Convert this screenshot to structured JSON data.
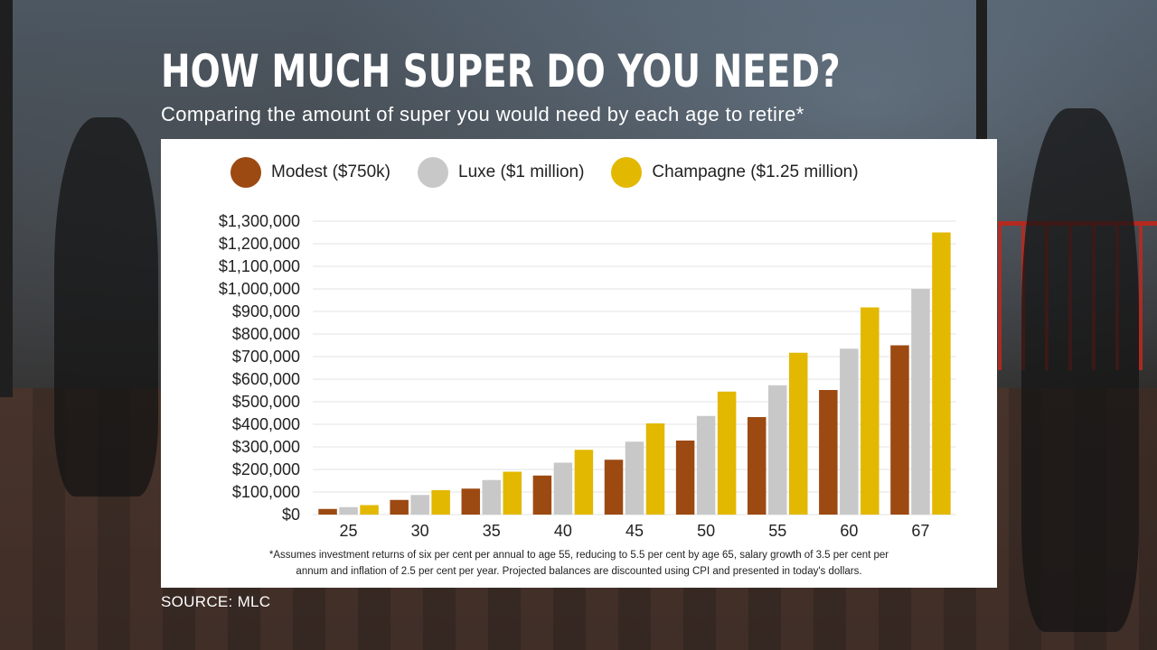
{
  "title": "HOW MUCH SUPER DO YOU NEED?",
  "subtitle": "Comparing the amount of super you would need by each age to retire*",
  "footnote_line1": "*Assumes investment returns of six per cent per annual to age 55, reducing to 5.5 per cent by age 65, salary growth of 3.5 per cent per",
  "footnote_line2": "annum and inflation of 2.5 per cent per year. Projected balances are discounted using CPI and presented in today's dollars.",
  "source": "SOURCE: MLC",
  "colors": {
    "modest": "#9c4a12",
    "luxe": "#c8c8c8",
    "champagne": "#e2b800",
    "grid": "#e3e3e3"
  },
  "chart_data": {
    "type": "bar",
    "title": "HOW MUCH SUPER DO YOU NEED?",
    "xlabel": "",
    "ylabel": "",
    "categories": [
      "25",
      "30",
      "35",
      "40",
      "45",
      "50",
      "55",
      "60",
      "67"
    ],
    "series": [
      {
        "name": "Modest ($750k)",
        "color": "#9c4a12",
        "values": [
          25000,
          65000,
          115000,
          173000,
          243000,
          328000,
          432000,
          552000,
          750000
        ]
      },
      {
        "name": "Luxe ($1 million)",
        "color": "#c8c8c8",
        "values": [
          33000,
          87000,
          153000,
          230000,
          323000,
          437000,
          573000,
          735000,
          1000000
        ]
      },
      {
        "name": "Champagne ($1.25 million)",
        "color": "#e2b800",
        "values": [
          42000,
          108000,
          190000,
          287000,
          404000,
          545000,
          717000,
          918000,
          1250000
        ]
      }
    ],
    "ylim": [
      0,
      1300000
    ],
    "yticks": [
      "$0",
      "$100,000",
      "$200,000",
      "$300,000",
      "$400,000",
      "$500,000",
      "$600,000",
      "$700,000",
      "$800,000",
      "$900,000",
      "$1,000,000",
      "$1,100,000",
      "$1,200,000",
      "$1,300,000"
    ],
    "grid": true,
    "legend": "top"
  }
}
